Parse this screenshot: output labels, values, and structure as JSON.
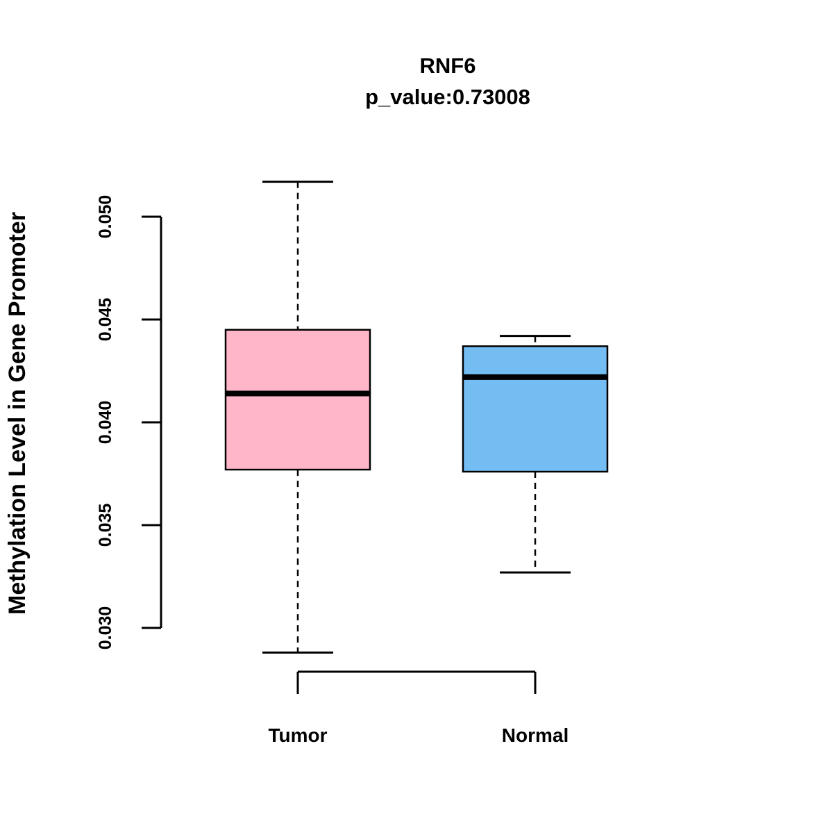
{
  "chart_data": {
    "type": "boxplot",
    "title": "RNF6",
    "subtitle": "p_value:0.73008",
    "xlabel": "",
    "ylabel": "Methylation Level in Gene Promoter",
    "categories": [
      "Tumor",
      "Normal"
    ],
    "yticks": [
      0.03,
      0.035,
      0.04,
      0.045,
      0.05
    ],
    "ytick_labels": [
      "0.030",
      "0.035",
      "0.040",
      "0.045",
      "0.050"
    ],
    "ylim": [
      0.0288,
      0.0517
    ],
    "grid": false,
    "legend": "none",
    "series": [
      {
        "name": "Tumor",
        "color": "#FFB6C8",
        "whisker_low": 0.0288,
        "q1": 0.0377,
        "median": 0.0414,
        "q3": 0.0445,
        "whisker_high": 0.0517
      },
      {
        "name": "Normal",
        "color": "#74BDF2",
        "whisker_low": 0.0327,
        "q1": 0.0376,
        "median": 0.0422,
        "q3": 0.0437,
        "whisker_high": 0.0442
      }
    ]
  }
}
